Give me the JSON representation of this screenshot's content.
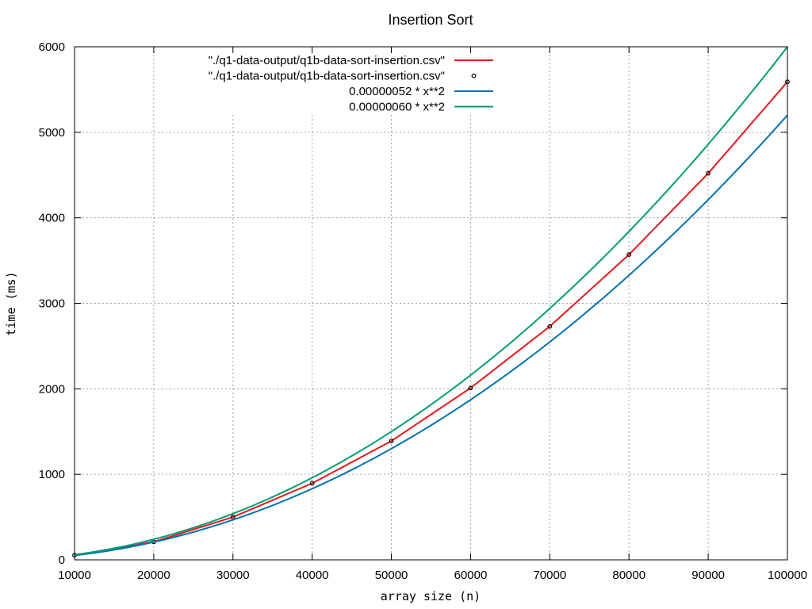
{
  "chart_data": {
    "type": "line",
    "title": "Insertion Sort",
    "xlabel": "array size (n)",
    "ylabel": "time (ms)",
    "xlim": [
      10000,
      100000
    ],
    "ylim": [
      0,
      6000
    ],
    "x_ticks": [
      10000,
      20000,
      30000,
      40000,
      50000,
      60000,
      70000,
      80000,
      90000,
      100000
    ],
    "y_ticks": [
      0,
      1000,
      2000,
      3000,
      4000,
      5000,
      6000
    ],
    "grid": true,
    "legend_position": "top-center",
    "x": [
      10000,
      20000,
      30000,
      40000,
      50000,
      60000,
      70000,
      80000,
      90000,
      100000
    ],
    "series": [
      {
        "name": "\"./q1-data-output/q1b-data-sort-insertion.csv\"",
        "style": "line",
        "color": "#e41a1c",
        "values": [
          55,
          210,
          500,
          895,
          1390,
          2010,
          2730,
          3570,
          4520,
          5590
        ]
      },
      {
        "name": "\"./q1-data-output/q1b-data-sort-insertion.csv\"",
        "style": "points",
        "color": "#000000",
        "values": [
          55,
          210,
          500,
          895,
          1390,
          2010,
          2730,
          3570,
          4520,
          5590
        ]
      },
      {
        "name": "0.00000052 * x**2",
        "style": "function",
        "coefficient": 5.2e-07,
        "color": "#0072b2",
        "values": [
          52,
          208,
          468,
          832,
          1300,
          1872,
          2548,
          3328,
          4212,
          5200
        ]
      },
      {
        "name": "0.00000060 * x**2",
        "style": "function",
        "coefficient": 6e-07,
        "color": "#009e73",
        "values": [
          60,
          240,
          540,
          960,
          1500,
          2160,
          2940,
          3840,
          4860,
          6000
        ]
      }
    ]
  }
}
